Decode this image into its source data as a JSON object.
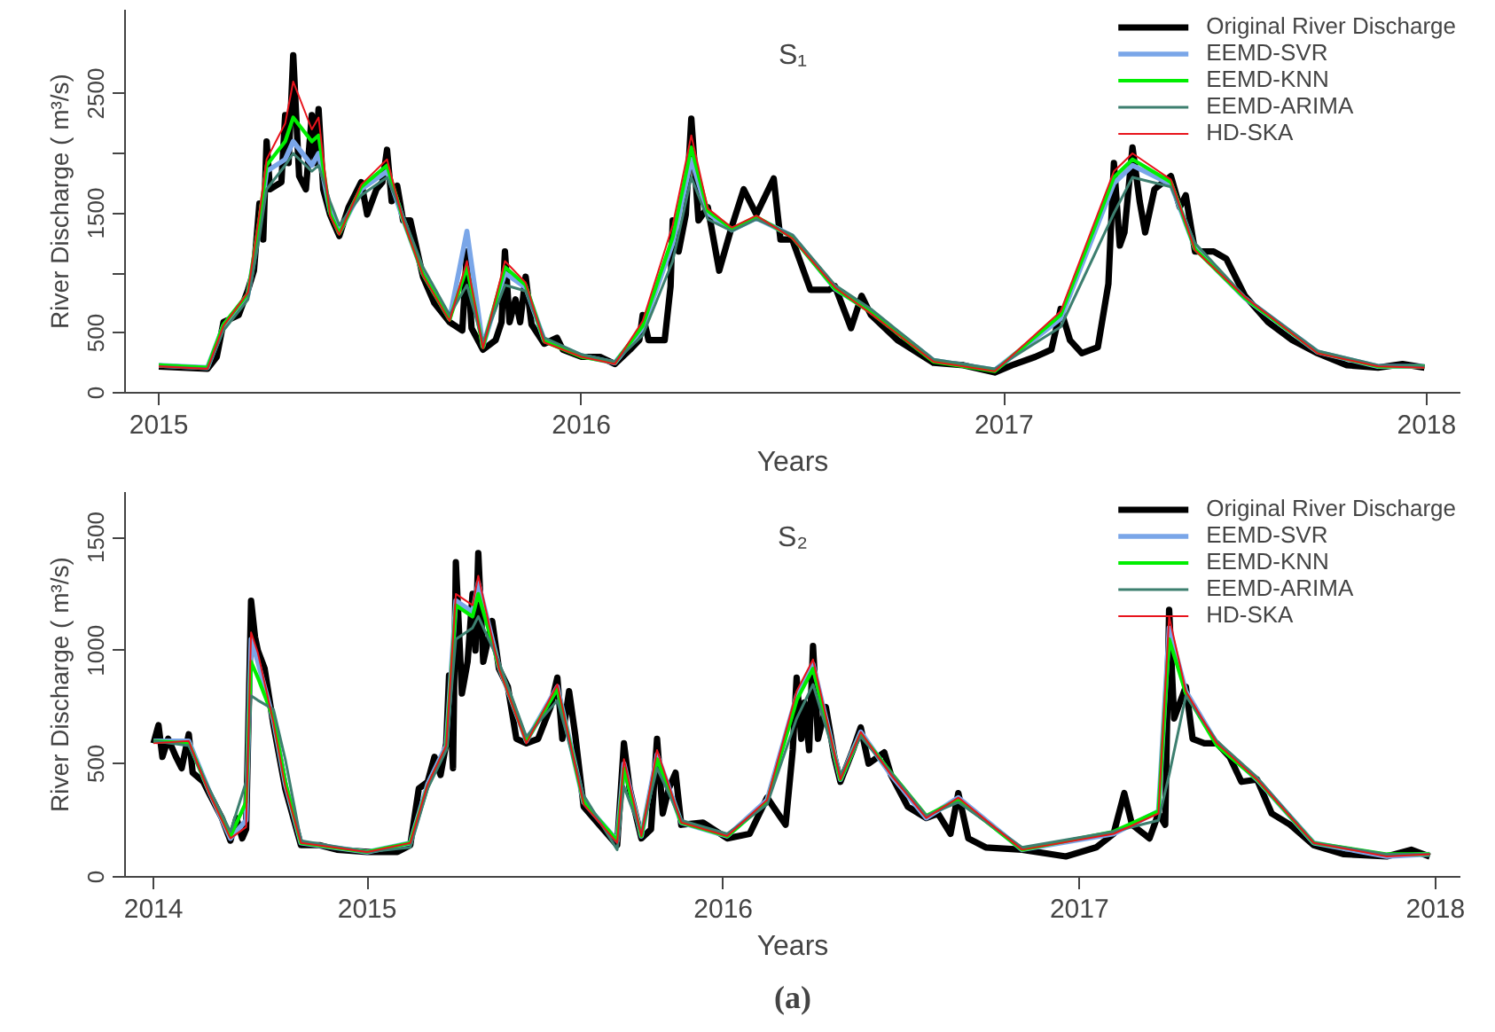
{
  "chart_data": [
    {
      "type": "line",
      "title": "S₁",
      "xlabel": "Years",
      "ylabel": "River Discharge ( m³/s)",
      "xlim": [
        2014.92,
        2018.08
      ],
      "ylim": [
        0,
        3200
      ],
      "xticks": [
        2015,
        2016,
        2017,
        2018
      ],
      "yticks": [
        0,
        500,
        {
          "value": 1000,
          "label": null
        },
        1500,
        {
          "value": 2000,
          "label": null
        },
        2500
      ],
      "grid": false,
      "legend": "top right",
      "line_style": "solid",
      "x": [
        2015.0,
        2015.115,
        2015.153,
        2015.211,
        2015.238,
        2015.255,
        2015.299,
        2015.318,
        2015.362,
        2015.378,
        2015.405,
        2015.427,
        2015.479,
        2015.54,
        2015.578,
        2015.625,
        2015.688,
        2015.729,
        2015.767,
        2015.819,
        2015.868,
        2015.912,
        2016.0,
        2016.079,
        2016.145,
        2016.216,
        2016.26,
        2016.299,
        2016.356,
        2016.414,
        2016.499,
        2016.6,
        2016.685,
        2016.833,
        2016.978,
        2017.134,
        2017.26,
        2017.304,
        2017.395,
        2017.452,
        2017.57,
        2017.742,
        2017.885,
        2017.995
      ],
      "series": [
        {
          "name": "Original River Discharge",
          "color": "#000000",
          "x": [
            2015.0,
            2015.115,
            2015.137,
            2015.153,
            2015.189,
            2015.211,
            2015.225,
            2015.238,
            2015.247,
            2015.255,
            2015.263,
            2015.29,
            2015.299,
            2015.307,
            2015.318,
            2015.332,
            2015.348,
            2015.362,
            2015.37,
            2015.378,
            2015.389,
            2015.405,
            2015.427,
            2015.449,
            2015.479,
            2015.493,
            2015.515,
            2015.529,
            2015.54,
            2015.551,
            2015.564,
            2015.578,
            2015.595,
            2015.625,
            2015.652,
            2015.688,
            2015.718,
            2015.729,
            2015.74,
            2015.767,
            2015.797,
            2015.811,
            2015.819,
            2015.83,
            2015.844,
            2015.855,
            2015.868,
            2015.882,
            2015.912,
            2015.942,
            2015.956,
            2016.0,
            2016.044,
            2016.079,
            2016.115,
            2016.137,
            2016.145,
            2016.159,
            2016.197,
            2016.211,
            2016.216,
            2016.23,
            2016.247,
            2016.26,
            2016.277,
            2016.299,
            2016.326,
            2016.356,
            2016.384,
            2016.414,
            2016.455,
            2016.471,
            2016.499,
            2016.542,
            2016.586,
            2016.6,
            2016.638,
            2016.663,
            2016.685,
            2016.748,
            2016.833,
            2016.904,
            2016.978,
            2017.019,
            2017.074,
            2017.112,
            2017.134,
            2017.156,
            2017.184,
            2017.222,
            2017.247,
            2017.26,
            2017.274,
            2017.285,
            2017.304,
            2017.321,
            2017.334,
            2017.356,
            2017.395,
            2017.416,
            2017.43,
            2017.452,
            2017.496,
            2017.526,
            2017.57,
            2017.625,
            2017.682,
            2017.742,
            2017.811,
            2017.885,
            2017.943,
            2017.995
          ],
          "values": [
            220,
            200,
            300,
            590,
            650,
            860,
            1020,
            1580,
            1280,
            2100,
            1700,
            1760,
            2320,
            1920,
            2820,
            1810,
            1700,
            2320,
            1920,
            2370,
            1700,
            1490,
            1310,
            1550,
            1760,
            1490,
            1700,
            1760,
            2030,
            1600,
            1730,
            1440,
            1440,
            970,
            750,
            590,
            520,
            1180,
            540,
            360,
            440,
            590,
            1180,
            590,
            780,
            590,
            970,
            570,
            410,
            460,
            360,
            300,
            300,
            240,
            360,
            440,
            650,
            440,
            440,
            890,
            1440,
            1180,
            1490,
            2290,
            1440,
            1550,
            1020,
            1390,
            1700,
            1490,
            1790,
            1280,
            1280,
            860,
            860,
            890,
            540,
            810,
            650,
            440,
            250,
            230,
            170,
            230,
            300,
            360,
            700,
            440,
            330,
            380,
            910,
            1920,
            1230,
            1340,
            2050,
            1600,
            1340,
            1700,
            1810,
            1550,
            1650,
            1180,
            1180,
            1120,
            810,
            590,
            440,
            330,
            230,
            210,
            240,
            210
          ]
        },
        {
          "name": "EEMD-SVR",
          "color": "#7aa6e8",
          "values": [
            230,
            210,
            560,
            820,
            1400,
            1850,
            1950,
            2100,
            1900,
            2000,
            1520,
            1340,
            1700,
            1850,
            1450,
            1000,
            620,
            1350,
            390,
            1000,
            880,
            440,
            310,
            250,
            540,
            1250,
            1950,
            1500,
            1360,
            1460,
            1310,
            870,
            680,
            270,
            190,
            620,
            1750,
            1900,
            1740,
            1210,
            790,
            340,
            220,
            220
          ]
        },
        {
          "name": "EEMD-KNN",
          "color": "#00ee00",
          "values": [
            230,
            210,
            570,
            830,
            1450,
            1900,
            2100,
            2300,
            2100,
            2150,
            1500,
            1330,
            1720,
            1900,
            1450,
            990,
            610,
            1050,
            380,
            1050,
            900,
            430,
            300,
            250,
            560,
            1300,
            2050,
            1520,
            1370,
            1470,
            1300,
            870,
            670,
            260,
            180,
            650,
            1800,
            1950,
            1760,
            1200,
            790,
            340,
            220,
            220
          ]
        },
        {
          "name": "EEMD-ARIMA",
          "color": "#3d7f6f",
          "values": [
            220,
            200,
            520,
            780,
            1300,
            1700,
            1900,
            2000,
            1850,
            1900,
            1600,
            1400,
            1650,
            1800,
            1480,
            1050,
            650,
            900,
            420,
            900,
            850,
            460,
            320,
            260,
            480,
            1100,
            1800,
            1450,
            1350,
            1450,
            1320,
            900,
            700,
            280,
            200,
            550,
            1500,
            1800,
            1720,
            1250,
            800,
            350,
            230,
            220
          ]
        },
        {
          "name": "HD-SKA",
          "color": "#e8141c",
          "values": [
            220,
            200,
            560,
            840,
            1500,
            1950,
            2250,
            2600,
            2200,
            2300,
            1480,
            1320,
            1740,
            1950,
            1440,
            980,
            600,
            1100,
            370,
            1100,
            920,
            420,
            300,
            240,
            600,
            1400,
            2150,
            1540,
            1380,
            1480,
            1290,
            880,
            660,
            260,
            180,
            680,
            1850,
            2000,
            1780,
            1190,
            800,
            330,
            220,
            210
          ]
        }
      ]
    },
    {
      "type": "line",
      "title": "S₂",
      "xlabel": "Years",
      "ylabel": "River Discharge ( m³/s)",
      "xlim": [
        2014.32,
        2018.07
      ],
      "ylim": [
        0,
        1700
      ],
      "xticks": [
        {
          "value": 2014.4,
          "label": "2014"
        },
        2015,
        2016,
        2017,
        2018
      ],
      "yticks": [
        0,
        500,
        1000,
        1500
      ],
      "grid": false,
      "legend": "top right",
      "line_style": "solid",
      "annotations": [
        "(a)"
      ],
      "x": [
        2014.4,
        2014.499,
        2014.556,
        2014.616,
        2014.66,
        2014.674,
        2014.693,
        2014.737,
        2014.77,
        2014.814,
        2015.0,
        2015.121,
        2015.17,
        2015.222,
        2015.249,
        2015.296,
        2015.312,
        2015.37,
        2015.447,
        2015.534,
        2015.608,
        2015.702,
        2015.721,
        2015.77,
        2015.814,
        2015.882,
        2016.011,
        2016.123,
        2016.206,
        2016.252,
        2016.329,
        2016.386,
        2016.471,
        2016.57,
        2016.66,
        2016.839,
        2017.096,
        2017.222,
        2017.252,
        2017.299,
        2017.386,
        2017.499,
        2017.658,
        2017.863,
        2017.984
      ],
      "series": [
        {
          "name": "Original River Discharge",
          "color": "#000000",
          "x": [
            2014.4,
            2014.414,
            2014.425,
            2014.441,
            2014.463,
            2014.479,
            2014.499,
            2014.51,
            2014.54,
            2014.556,
            2014.592,
            2014.616,
            2014.633,
            2014.649,
            2014.66,
            2014.674,
            2014.685,
            2014.693,
            2014.712,
            2014.737,
            2014.77,
            2014.814,
            2014.866,
            2014.915,
            2015.0,
            2015.085,
            2015.121,
            2015.145,
            2015.17,
            2015.189,
            2015.206,
            2015.222,
            2015.23,
            2015.241,
            2015.249,
            2015.266,
            2015.282,
            2015.296,
            2015.304,
            2015.312,
            2015.326,
            2015.351,
            2015.37,
            2015.395,
            2015.419,
            2015.447,
            2015.48,
            2015.515,
            2015.534,
            2015.548,
            2015.567,
            2015.584,
            2015.608,
            2015.652,
            2015.702,
            2015.721,
            2015.737,
            2015.77,
            2015.797,
            2015.814,
            2015.83,
            2015.847,
            2015.866,
            2015.882,
            2015.943,
            2016.011,
            2016.074,
            2016.123,
            2016.175,
            2016.195,
            2016.206,
            2016.219,
            2016.228,
            2016.241,
            2016.252,
            2016.266,
            2016.288,
            2016.312,
            2016.329,
            2016.364,
            2016.386,
            2016.408,
            2016.452,
            2016.471,
            2016.518,
            2016.57,
            2016.603,
            2016.638,
            2016.66,
            2016.688,
            2016.737,
            2016.839,
            2016.962,
            2017.047,
            2017.096,
            2017.126,
            2017.148,
            2017.197,
            2017.222,
            2017.241,
            2017.252,
            2017.266,
            2017.299,
            2017.318,
            2017.351,
            2017.386,
            2017.422,
            2017.455,
            2017.499,
            2017.54,
            2017.592,
            2017.658,
            2017.743,
            2017.863,
            2017.932,
            2017.984
          ],
          "values": [
            590,
            670,
            530,
            610,
            530,
            480,
            630,
            460,
            420,
            370,
            260,
            160,
            260,
            170,
            210,
            1220,
            1060,
            1000,
            920,
            670,
            390,
            140,
            140,
            120,
            110,
            110,
            140,
            390,
            420,
            530,
            450,
            590,
            890,
            480,
            1390,
            810,
            950,
            1250,
            1000,
            1430,
            950,
            1130,
            920,
            840,
            610,
            590,
            610,
            750,
            880,
            610,
            820,
            630,
            310,
            230,
            140,
            590,
            390,
            170,
            210,
            610,
            280,
            390,
            460,
            230,
            240,
            170,
            190,
            350,
            230,
            560,
            880,
            610,
            770,
            560,
            1020,
            610,
            750,
            530,
            420,
            560,
            660,
            500,
            550,
            450,
            310,
            260,
            280,
            190,
            370,
            170,
            130,
            120,
            90,
            130,
            190,
            370,
            230,
            170,
            280,
            230,
            1180,
            700,
            840,
            610,
            590,
            590,
            530,
            420,
            430,
            280,
            230,
            140,
            100,
            90,
            120,
            90
          ]
        },
        {
          "name": "EEMD-SVR",
          "color": "#7aa6e8",
          "values": [
            600,
            600,
            380,
            170,
            250,
            1050,
            950,
            690,
            410,
            150,
            110,
            150,
            410,
            580,
            1220,
            1170,
            1300,
            930,
            600,
            840,
            330,
            160,
            500,
            180,
            540,
            240,
            180,
            340,
            800,
            940,
            430,
            640,
            450,
            260,
            350,
            120,
            190,
            290,
            1100,
            820,
            590,
            430,
            150,
            90,
            100
          ]
        },
        {
          "name": "EEMD-KNN",
          "color": "#00ee00",
          "values": [
            600,
            590,
            380,
            180,
            330,
            950,
            880,
            700,
            420,
            150,
            110,
            150,
            400,
            570,
            1200,
            1150,
            1250,
            930,
            600,
            830,
            330,
            160,
            480,
            180,
            520,
            240,
            180,
            330,
            780,
            920,
            430,
            630,
            460,
            270,
            340,
            120,
            200,
            290,
            1050,
            810,
            580,
            430,
            150,
            100,
            100
          ]
        },
        {
          "name": "EEMD-ARIMA",
          "color": "#3d7f6f",
          "values": [
            600,
            580,
            390,
            200,
            420,
            800,
            780,
            740,
            520,
            160,
            110,
            130,
            390,
            560,
            1050,
            1100,
            1150,
            950,
            620,
            780,
            360,
            120,
            400,
            190,
            480,
            250,
            190,
            320,
            700,
            850,
            450,
            620,
            460,
            270,
            330,
            130,
            200,
            250,
            450,
            800,
            600,
            440,
            150,
            100,
            100
          ]
        },
        {
          "name": "HD-SKA",
          "color": "#e8141c",
          "values": [
            590,
            600,
            370,
            170,
            220,
            1080,
            990,
            680,
            400,
            150,
            110,
            150,
            410,
            580,
            1250,
            1200,
            1330,
            920,
            590,
            850,
            320,
            150,
            520,
            180,
            560,
            240,
            180,
            340,
            820,
            960,
            430,
            640,
            450,
            260,
            350,
            120,
            190,
            280,
            1150,
            820,
            590,
            430,
            150,
            90,
            100
          ]
        }
      ]
    }
  ]
}
